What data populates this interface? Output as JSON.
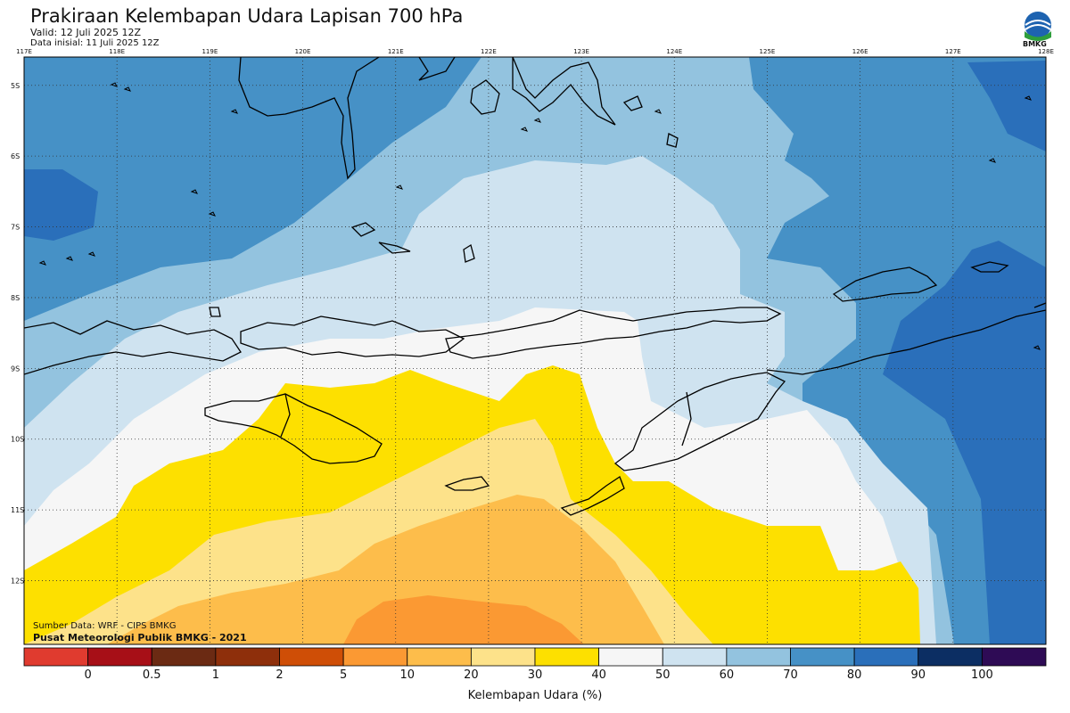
{
  "header": {
    "title": "Prakiraan Kelembapan Udara Lapisan 700 hPa",
    "valid": "Valid: 12 Juli 2025 12Z",
    "initial": "Data inisial: 11 Juli 2025 12Z",
    "logo_text": "BMKG"
  },
  "map": {
    "lon_labels": [
      "117E",
      "118E",
      "119E",
      "120E",
      "121E",
      "122E",
      "123E",
      "124E",
      "125E",
      "126E",
      "127E",
      "128E"
    ],
    "lat_labels": [
      "5S",
      "6S",
      "7S",
      "8S",
      "9S",
      "10S",
      "11S",
      "12S"
    ],
    "lon_range": [
      117,
      128
    ],
    "lat_range": [
      -4.6,
      -12.9
    ],
    "grid": "dotted",
    "colors": {
      "c80_90": "#2a6fba",
      "c70_80": "#4691c6",
      "c60_70": "#93c3df",
      "c50_60": "#cfe3f0",
      "c40_50": "#f6f6f6",
      "c30_40": "#fde000",
      "c20_30": "#fde28a",
      "c10_20": "#fdbd4b",
      "c5_10": "#fb9933",
      "coast": "#000000"
    }
  },
  "source": {
    "line1": "Sumber Data: WRF - CIPS BMKG",
    "line2": "Pusat Meteorologi Publik BMKG - 2021"
  },
  "colorbar": {
    "title": "Kelembapan Udara (%)",
    "labels": [
      "0",
      "0.5",
      "1",
      "2",
      "5",
      "10",
      "20",
      "30",
      "40",
      "50",
      "60",
      "70",
      "80",
      "90",
      "100"
    ],
    "colors": [
      "#e03b2f",
      "#a70f17",
      "#6b2a13",
      "#8e2f0b",
      "#cf4e06",
      "#fb9933",
      "#fdbd4b",
      "#fde28a",
      "#fde000",
      "#f6f6f6",
      "#cfe3f0",
      "#93c3df",
      "#4691c6",
      "#2a6fba",
      "#0c2e63",
      "#2e0b55"
    ]
  }
}
